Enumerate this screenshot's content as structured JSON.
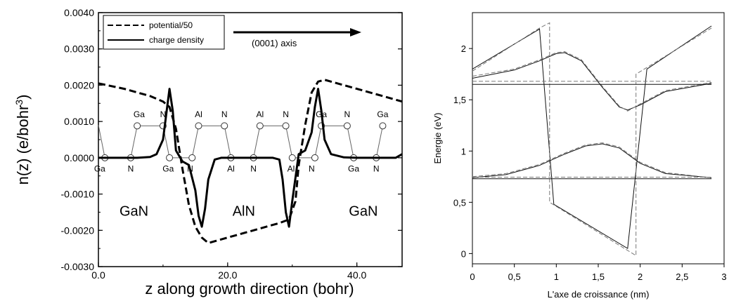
{
  "chart_data": [
    {
      "type": "line",
      "xlabel": "z along growth direction (bohr)",
      "ylabel": "n(z) (e/bohr",
      "ylabel_sup": "3",
      "ylabel_tail": ")",
      "xlim": [
        0,
        47
      ],
      "ylim": [
        -0.003,
        0.004
      ],
      "xticks": [
        {
          "v": 0,
          "label": "0.0"
        },
        {
          "v": 20,
          "label": "20.0"
        },
        {
          "v": 40,
          "label": "40.0"
        }
      ],
      "yticks": [
        {
          "v": 0.004,
          "label": "0.0040"
        },
        {
          "v": 0.003,
          "label": "0.0030"
        },
        {
          "v": 0.002,
          "label": "0.0020"
        },
        {
          "v": 0.001,
          "label": "0.0010"
        },
        {
          "v": 0.0,
          "label": "0.0000"
        },
        {
          "v": -0.001,
          "label": "-0.0010"
        },
        {
          "v": -0.002,
          "label": "-0.0020"
        },
        {
          "v": -0.003,
          "label": "-0.0030"
        }
      ],
      "legend": {
        "position": "top-left",
        "entries": [
          "potential/50",
          "charge density"
        ]
      },
      "annotation": "(0001) axis",
      "regions": [
        {
          "label": "GaN",
          "x": 5.5,
          "y": -0.0016
        },
        {
          "label": "AlN",
          "x": 22.5,
          "y": -0.0016
        },
        {
          "label": "GaN",
          "x": 41,
          "y": -0.0016
        }
      ],
      "series": [
        {
          "name": "potential/50",
          "style": "dashed",
          "x": [
            0,
            4,
            8,
            10,
            11,
            12,
            13,
            14,
            15,
            16,
            17,
            18,
            20,
            24,
            28,
            29.5,
            30.5,
            31,
            32,
            33,
            34,
            35,
            36,
            40,
            44,
            47
          ],
          "y": [
            0.00205,
            0.0019,
            0.0017,
            0.00155,
            0.0014,
            0.0008,
            -0.0003,
            -0.0013,
            -0.0019,
            -0.0022,
            -0.00235,
            -0.0023,
            -0.0022,
            -0.002,
            -0.0018,
            -0.0017,
            -0.0012,
            -0.0002,
            0.0009,
            0.0018,
            0.0021,
            0.00215,
            0.0021,
            0.0019,
            0.0017,
            0.00155
          ]
        },
        {
          "name": "charge density",
          "style": "solid",
          "x": [
            0,
            6,
            8,
            9,
            10,
            10.5,
            11,
            11.5,
            12,
            13,
            14,
            15,
            15.5,
            16,
            16.5,
            17,
            18,
            19,
            27,
            28,
            28.5,
            29,
            29.5,
            30,
            31,
            32,
            33,
            33.5,
            34,
            34.5,
            35,
            36,
            38,
            40,
            46,
            47
          ],
          "y": [
            0,
            0,
            2e-05,
            0.0001,
            0.0005,
            0.0012,
            0.0019,
            0.0013,
            0.0002,
            -0.0001,
            -0.0002,
            -0.0009,
            -0.0016,
            -0.0019,
            -0.0014,
            -0.0006,
            -5e-05,
            0,
            0,
            -5e-05,
            -0.0006,
            -0.0015,
            -0.0019,
            -0.0012,
            0.0001,
            0.0002,
            0.0007,
            0.0014,
            0.0019,
            0.0013,
            0.0005,
            0.0001,
            1e-05,
            0,
            0,
            0.0001
          ]
        }
      ],
      "atom_chain": {
        "bonds": [
          [
            [
              0,
              0.0009
            ],
            [
              1,
              0
            ]
          ],
          [
            [
              1,
              0
            ],
            [
              5,
              0
            ]
          ],
          [
            [
              5,
              0
            ],
            [
              6,
              0.00088
            ]
          ],
          [
            [
              6,
              0.00088
            ],
            [
              10,
              0.00088
            ]
          ],
          [
            [
              10,
              0.00088
            ],
            [
              11,
              0
            ]
          ],
          [
            [
              11,
              0
            ],
            [
              14.5,
              0
            ]
          ],
          [
            [
              14.5,
              0
            ],
            [
              15.5,
              0.00088
            ]
          ],
          [
            [
              15.5,
              0.00088
            ],
            [
              19.5,
              0.00088
            ]
          ],
          [
            [
              19.5,
              0.00088
            ],
            [
              20.5,
              0
            ]
          ],
          [
            [
              20.5,
              0
            ],
            [
              24,
              0
            ]
          ],
          [
            [
              24,
              0
            ],
            [
              25,
              0.00088
            ]
          ],
          [
            [
              25,
              0.00088
            ],
            [
              29,
              0.00088
            ]
          ],
          [
            [
              29,
              0.00088
            ],
            [
              30,
              0
            ]
          ],
          [
            [
              30,
              0
            ],
            [
              33.5,
              0
            ]
          ],
          [
            [
              33.5,
              0
            ],
            [
              34.5,
              0.00088
            ]
          ],
          [
            [
              34.5,
              0.00088
            ],
            [
              38.5,
              0.00088
            ]
          ],
          [
            [
              38.5,
              0.00088
            ],
            [
              39.5,
              0
            ]
          ],
          [
            [
              39.5,
              0
            ],
            [
              43,
              0
            ]
          ],
          [
            [
              43,
              0
            ],
            [
              44,
              0.00088
            ]
          ]
        ],
        "atoms": [
          {
            "x": 1,
            "y": 0
          },
          {
            "x": 5,
            "y": 0
          },
          {
            "x": 6,
            "y": 0.00088
          },
          {
            "x": 10,
            "y": 0.00088
          },
          {
            "x": 11,
            "y": 0
          },
          {
            "x": 14.5,
            "y": 0
          },
          {
            "x": 15.5,
            "y": 0.00088
          },
          {
            "x": 19.5,
            "y": 0.00088
          },
          {
            "x": 20.5,
            "y": 0
          },
          {
            "x": 24,
            "y": 0
          },
          {
            "x": 25,
            "y": 0.00088
          },
          {
            "x": 29,
            "y": 0.00088
          },
          {
            "x": 30,
            "y": 0
          },
          {
            "x": 33.5,
            "y": 0
          },
          {
            "x": 34.5,
            "y": 0.00088
          },
          {
            "x": 38.5,
            "y": 0.00088
          },
          {
            "x": 39.5,
            "y": 0
          },
          {
            "x": 43,
            "y": 0
          },
          {
            "x": 44,
            "y": 0.00088
          }
        ],
        "labels": [
          {
            "text": "Ga",
            "x": 0.2,
            "y": -0.0003
          },
          {
            "text": "N",
            "x": 5,
            "y": -0.0003
          },
          {
            "text": "Ga",
            "x": 6.3,
            "y": 0.0012
          },
          {
            "text": "N",
            "x": 10,
            "y": 0.0012
          },
          {
            "text": "Ga",
            "x": 10.8,
            "y": -0.0003
          },
          {
            "text": "N",
            "x": 14.2,
            "y": -0.0003
          },
          {
            "text": "Al",
            "x": 15.5,
            "y": 0.0012
          },
          {
            "text": "N",
            "x": 19.5,
            "y": 0.0012
          },
          {
            "text": "Al",
            "x": 20.5,
            "y": -0.0003
          },
          {
            "text": "N",
            "x": 24,
            "y": -0.0003
          },
          {
            "text": "Al",
            "x": 25,
            "y": 0.0012
          },
          {
            "text": "N",
            "x": 29,
            "y": 0.0012
          },
          {
            "text": "Al",
            "x": 29.8,
            "y": -0.0003
          },
          {
            "text": "N",
            "x": 33,
            "y": -0.0003
          },
          {
            "text": "Ga",
            "x": 34.5,
            "y": 0.0012
          },
          {
            "text": "N",
            "x": 38.5,
            "y": 0.0012
          },
          {
            "text": "Ga",
            "x": 39.5,
            "y": -0.0003
          },
          {
            "text": "N",
            "x": 43,
            "y": -0.0003
          },
          {
            "text": "Ga",
            "x": 44,
            "y": 0.0012
          }
        ]
      }
    },
    {
      "type": "line",
      "xlabel": "L'axe de croissance (nm)",
      "ylabel": "Energie (eV)",
      "xlim": [
        0,
        3
      ],
      "ylim": [
        -0.1,
        2.35
      ],
      "xticks": [
        {
          "v": 0,
          "label": "0"
        },
        {
          "v": 0.5,
          "label": "0,5"
        },
        {
          "v": 1,
          "label": "1"
        },
        {
          "v": 1.5,
          "label": "1,5"
        },
        {
          "v": 2,
          "label": "2"
        },
        {
          "v": 2.5,
          "label": "2,5"
        },
        {
          "v": 3,
          "label": "3"
        }
      ],
      "yticks": [
        {
          "v": 0,
          "label": "0"
        },
        {
          "v": 0.5,
          "label": "0,5"
        },
        {
          "v": 1,
          "label": "1"
        },
        {
          "v": 1.5,
          "label": "1,5"
        },
        {
          "v": 2,
          "label": "2"
        }
      ],
      "series": [
        {
          "style": "solid",
          "x": [
            0,
            0.8,
            0.97,
            1.85,
            2.08,
            2.85
          ],
          "y": [
            1.8,
            2.19,
            0.48,
            0.05,
            1.8,
            2.22
          ]
        },
        {
          "style": "dashed",
          "x": [
            0,
            0.8,
            0.92,
            0.92,
            1.95,
            1.95,
            2.85
          ],
          "y": [
            1.78,
            2.2,
            2.25,
            0.5,
            -0.02,
            1.75,
            2.2
          ]
        },
        {
          "style": "solid",
          "x": [
            0,
            0.5,
            0.8,
            1.0,
            1.1,
            1.3,
            1.55,
            1.75,
            1.85,
            2.0,
            2.3,
            2.85
          ],
          "y": [
            1.71,
            1.79,
            1.88,
            1.95,
            1.96,
            1.88,
            1.62,
            1.43,
            1.4,
            1.45,
            1.58,
            1.66
          ]
        },
        {
          "style": "dashed",
          "x": [
            0,
            0.5,
            0.8,
            1.0,
            1.1,
            1.3,
            1.55,
            1.75,
            1.85,
            2.0,
            2.3,
            2.85
          ],
          "y": [
            1.73,
            1.8,
            1.89,
            1.96,
            1.97,
            1.89,
            1.63,
            1.44,
            1.39,
            1.46,
            1.59,
            1.67
          ]
        },
        {
          "style": "solid",
          "x": [
            0,
            2.85
          ],
          "y": [
            1.65,
            1.65
          ]
        },
        {
          "style": "dashed",
          "x": [
            0,
            2.85
          ],
          "y": [
            1.68,
            1.68
          ]
        },
        {
          "style": "solid",
          "x": [
            0,
            0.4,
            0.8,
            1.1,
            1.35,
            1.55,
            1.75,
            2.0,
            2.3,
            2.85
          ],
          "y": [
            0.74,
            0.77,
            0.86,
            0.97,
            1.05,
            1.07,
            1.03,
            0.88,
            0.78,
            0.74
          ]
        },
        {
          "style": "dashed",
          "x": [
            0,
            0.4,
            0.8,
            1.1,
            1.35,
            1.55,
            1.75,
            2.0,
            2.3,
            2.85
          ],
          "y": [
            0.75,
            0.78,
            0.87,
            0.98,
            1.06,
            1.08,
            1.04,
            0.89,
            0.79,
            0.74
          ]
        },
        {
          "style": "solid",
          "x": [
            0,
            2.85
          ],
          "y": [
            0.73,
            0.73
          ]
        },
        {
          "style": "dashed",
          "x": [
            0,
            2.85
          ],
          "y": [
            0.745,
            0.745
          ]
        }
      ]
    }
  ]
}
